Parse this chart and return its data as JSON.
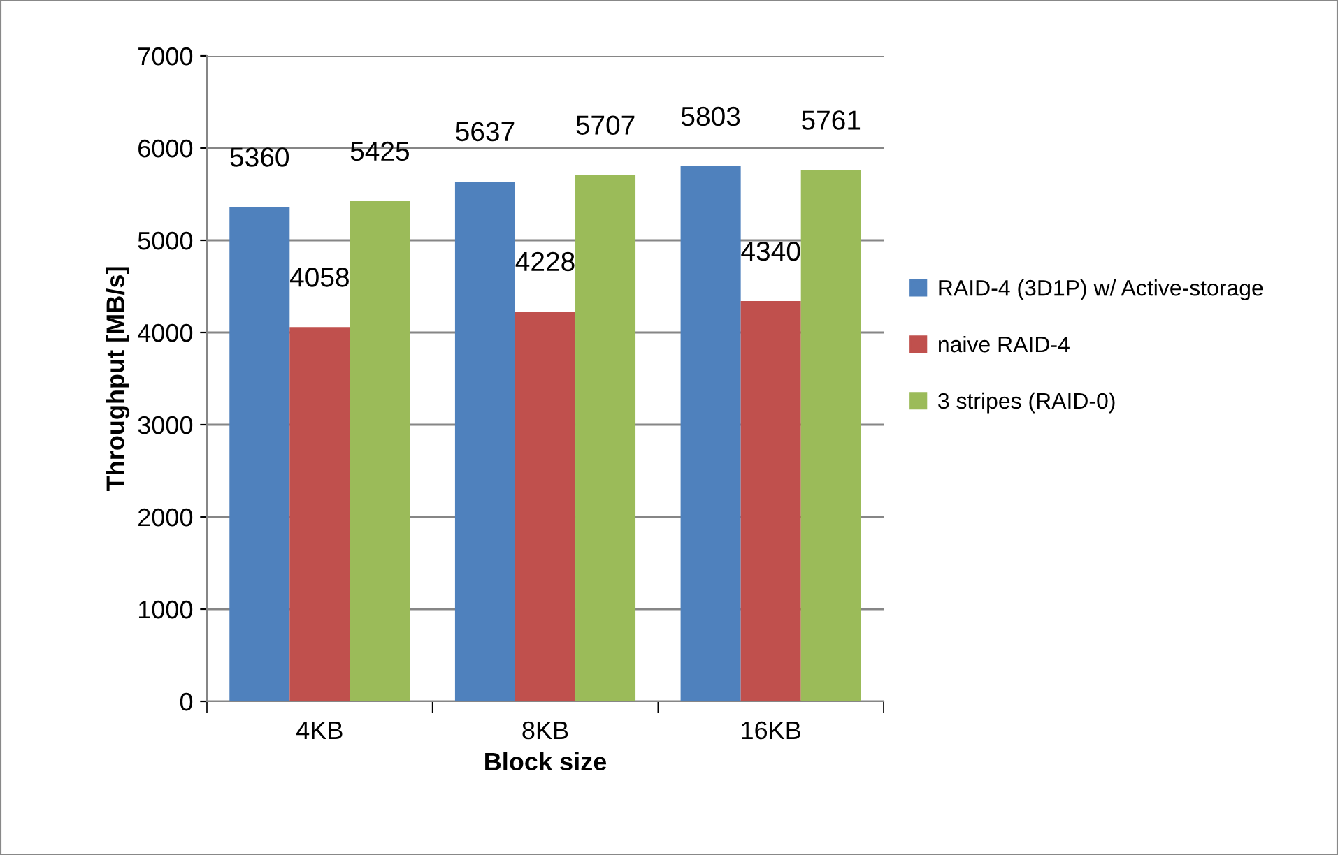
{
  "chart_data": {
    "type": "bar",
    "xlabel": "Block size",
    "ylabel": "Throughput [MB/s]",
    "categories": [
      "4KB",
      "8KB",
      "16KB"
    ],
    "series": [
      {
        "name": "RAID-4 (3D1P) w/ Active-storage",
        "color": "#4f81bd",
        "values": [
          5360,
          5637,
          5803
        ]
      },
      {
        "name": "naive RAID-4",
        "color": "#c0504d",
        "values": [
          4058,
          4228,
          4340
        ]
      },
      {
        "name": "3 stripes (RAID-0)",
        "color": "#9bbb59",
        "values": [
          5425,
          5707,
          5761
        ]
      }
    ],
    "ylim": [
      0,
      7000
    ],
    "yticks": [
      0,
      1000,
      2000,
      3000,
      4000,
      5000,
      6000,
      7000
    ],
    "grid": "y",
    "legend": "right",
    "data_labels": true
  }
}
